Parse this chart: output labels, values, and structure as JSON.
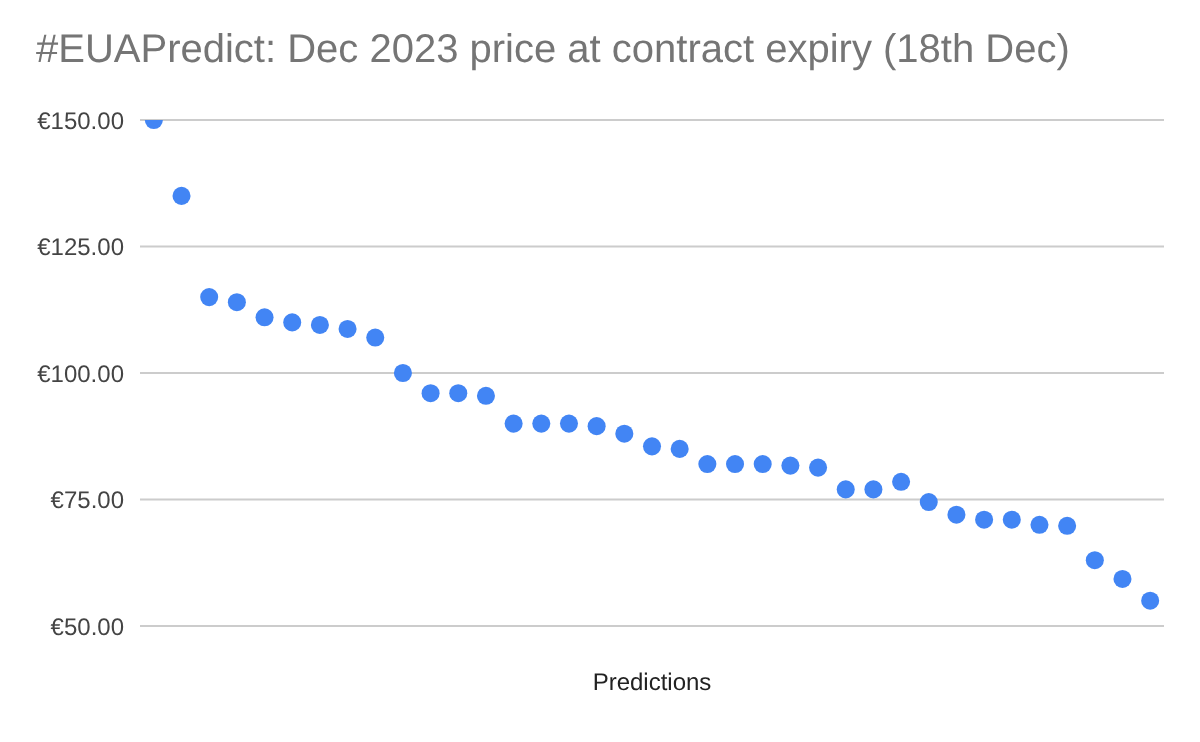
{
  "chart_data": {
    "type": "scatter",
    "title": "#EUAPredict: Dec 2023 price at contract expiry (18th Dec)",
    "xlabel": "Predictions",
    "categories": [
      null,
      null,
      null,
      null,
      null,
      null,
      null,
      null,
      null,
      null,
      null,
      null,
      null,
      null,
      null,
      null,
      null,
      null,
      null,
      null,
      null,
      null,
      null,
      null,
      null,
      null,
      null,
      null,
      null,
      null,
      null,
      null,
      null,
      null,
      null,
      null,
      null
    ],
    "values": [
      150,
      135,
      115,
      114,
      111,
      110,
      109.5,
      108.7,
      107,
      100,
      96,
      96,
      95.5,
      90,
      90,
      90,
      89.5,
      88,
      85.5,
      85,
      82,
      82,
      82,
      81.7,
      81.3,
      77,
      77,
      78.5,
      74.5,
      72,
      71,
      71,
      70,
      69.8,
      63,
      59.3,
      55
    ],
    "color": "#4285f4",
    "ylim": [
      50,
      150
    ],
    "yticks": [
      {
        "value": 50,
        "label": "€50.00"
      },
      {
        "value": 75,
        "label": "€75.00"
      },
      {
        "value": 100,
        "label": "€100.00"
      },
      {
        "value": 125,
        "label": "€125.00"
      },
      {
        "value": 150,
        "label": "€150.00"
      }
    ],
    "grid": "y",
    "tick_labels": "y"
  }
}
